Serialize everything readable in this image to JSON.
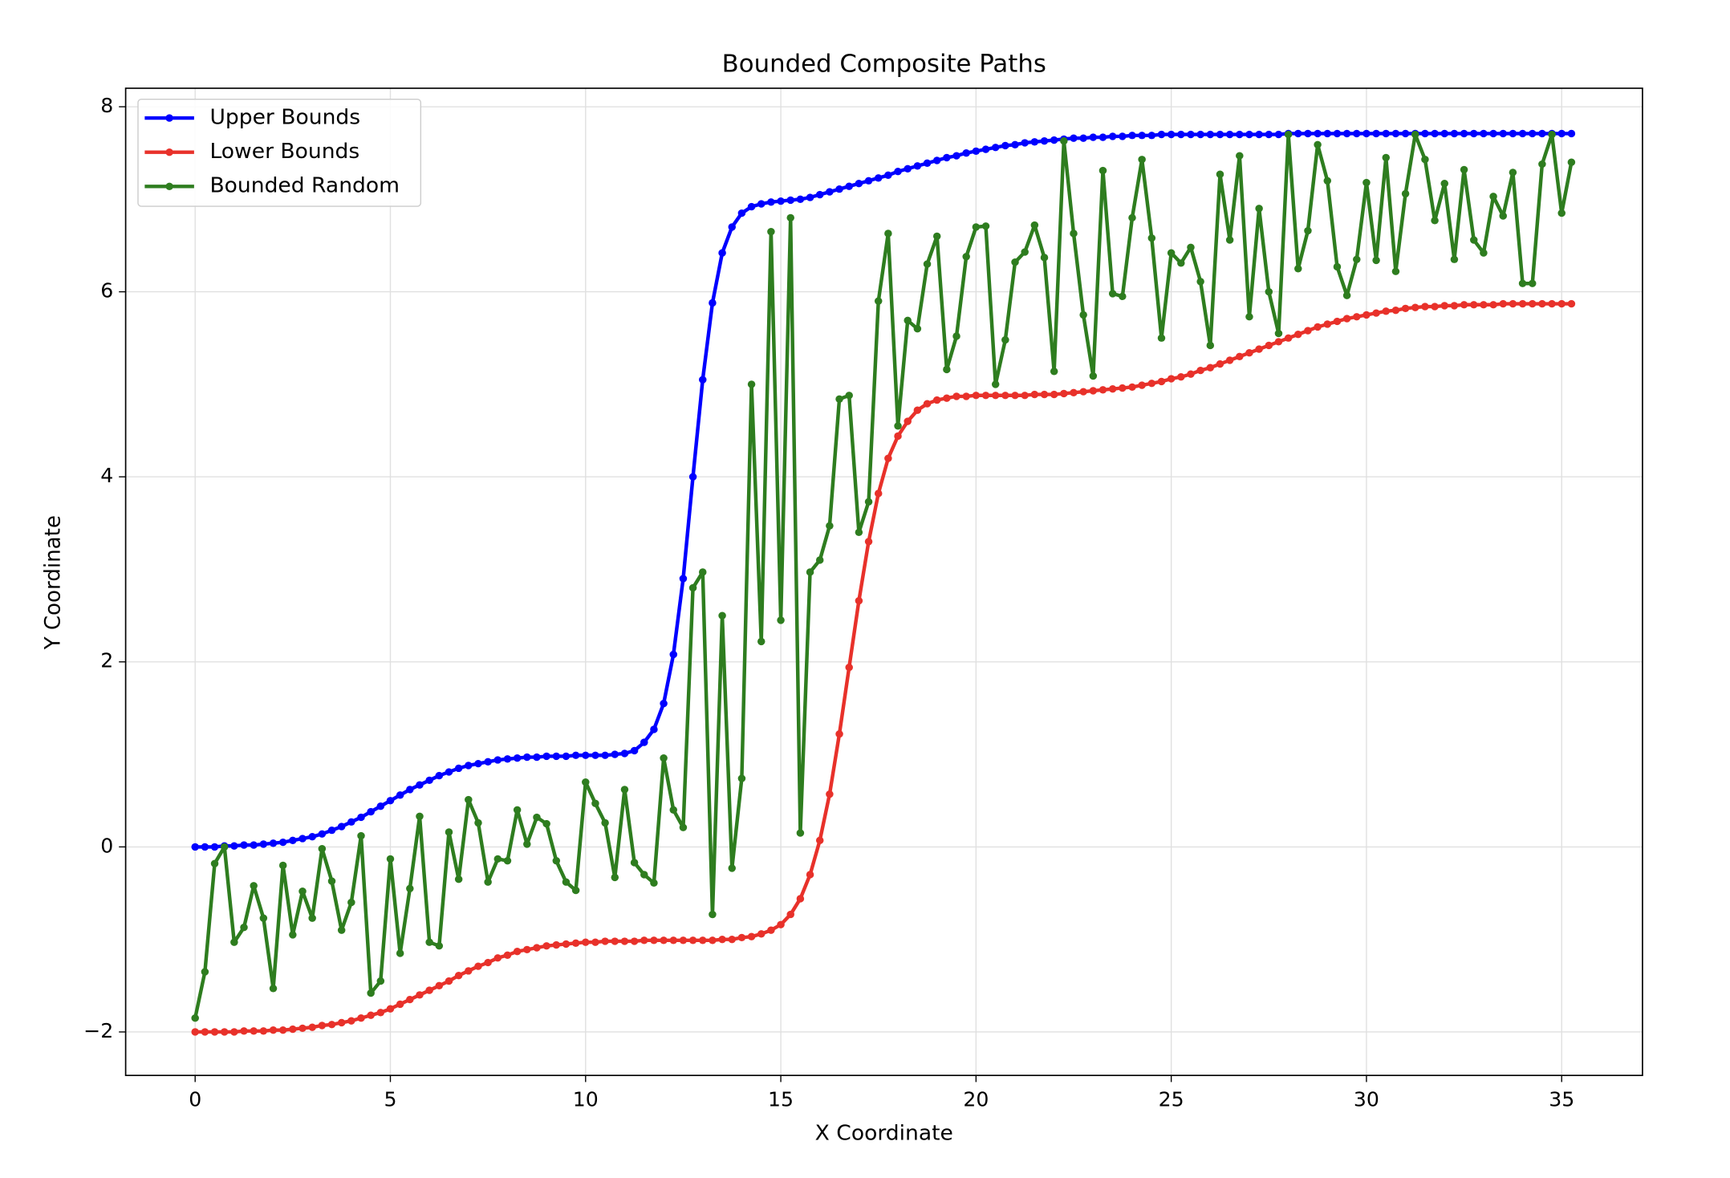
{
  "chart_data": {
    "type": "line",
    "title": "Bounded Composite Paths",
    "xlabel": "X Coordinate",
    "ylabel": "Y Coordinate",
    "x": [
      0,
      0.25,
      0.5,
      0.75,
      1,
      1.25,
      1.5,
      1.75,
      2,
      2.25,
      2.5,
      2.75,
      3,
      3.25,
      3.5,
      3.75,
      4,
      4.25,
      4.5,
      4.75,
      5,
      5.25,
      5.5,
      5.75,
      6,
      6.25,
      6.5,
      6.75,
      7,
      7.25,
      7.5,
      7.75,
      8,
      8.25,
      8.5,
      8.75,
      9,
      9.25,
      9.5,
      9.75,
      10,
      10.25,
      10.5,
      10.75,
      11,
      11.25,
      11.5,
      11.75,
      12,
      12.25,
      12.5,
      12.75,
      13,
      13.25,
      13.5,
      13.75,
      14,
      14.25,
      14.5,
      14.75,
      15,
      15.25,
      15.5,
      15.75,
      16,
      16.25,
      16.5,
      16.75,
      17,
      17.25,
      17.5,
      17.75,
      18,
      18.25,
      18.5,
      18.75,
      19,
      19.25,
      19.5,
      19.75,
      20,
      20.25,
      20.5,
      20.75,
      21,
      21.25,
      21.5,
      21.75,
      22,
      22.25,
      22.5,
      22.75,
      23,
      23.25,
      23.5,
      23.75,
      24,
      24.25,
      24.5,
      24.75,
      25,
      25.25,
      25.5,
      25.75,
      26,
      26.25,
      26.5,
      26.75,
      27,
      27.25,
      27.5,
      27.75,
      28,
      28.25,
      28.5,
      28.75,
      29,
      29.25,
      29.5,
      29.75,
      30,
      30.25,
      30.5,
      30.75,
      31,
      31.25,
      31.5,
      31.75,
      32,
      32.25,
      32.5,
      32.75,
      33,
      33.25,
      33.5,
      33.75,
      34,
      34.25,
      34.5,
      34.75,
      35,
      35.25
    ],
    "series": [
      {
        "name": "Upper Bounds",
        "color": "#0000ff",
        "values": [
          0,
          0,
          0,
          0.01,
          0.01,
          0.02,
          0.02,
          0.03,
          0.04,
          0.05,
          0.07,
          0.09,
          0.11,
          0.14,
          0.18,
          0.22,
          0.27,
          0.32,
          0.38,
          0.44,
          0.5,
          0.56,
          0.62,
          0.67,
          0.72,
          0.77,
          0.81,
          0.85,
          0.88,
          0.9,
          0.92,
          0.94,
          0.95,
          0.96,
          0.97,
          0.97,
          0.98,
          0.98,
          0.98,
          0.99,
          0.99,
          0.99,
          0.99,
          1.0,
          1.01,
          1.04,
          1.13,
          1.27,
          1.55,
          2.08,
          2.9,
          4.0,
          5.05,
          5.88,
          6.42,
          6.7,
          6.85,
          6.92,
          6.95,
          6.97,
          6.98,
          6.99,
          7.0,
          7.02,
          7.05,
          7.08,
          7.11,
          7.14,
          7.17,
          7.2,
          7.23,
          7.26,
          7.3,
          7.33,
          7.36,
          7.39,
          7.42,
          7.45,
          7.47,
          7.5,
          7.52,
          7.54,
          7.56,
          7.58,
          7.59,
          7.61,
          7.62,
          7.63,
          7.64,
          7.65,
          7.66,
          7.66,
          7.67,
          7.67,
          7.68,
          7.68,
          7.69,
          7.69,
          7.69,
          7.7,
          7.7,
          7.7,
          7.7,
          7.7,
          7.7,
          7.7,
          7.7,
          7.7,
          7.7,
          7.7,
          7.7,
          7.7,
          7.71,
          7.71,
          7.71,
          7.71,
          7.71,
          7.71,
          7.71,
          7.71,
          7.71,
          7.71,
          7.71,
          7.71,
          7.71,
          7.71,
          7.71,
          7.71,
          7.71,
          7.71,
          7.71,
          7.71,
          7.71,
          7.71,
          7.71,
          7.71,
          7.71,
          7.71,
          7.71,
          7.71,
          7.71,
          7.71
        ]
      },
      {
        "name": "Lower Bounds",
        "color": "#e8312a",
        "values": [
          -2,
          -2,
          -2,
          -2,
          -2,
          -1.99,
          -1.99,
          -1.99,
          -1.98,
          -1.98,
          -1.97,
          -1.96,
          -1.95,
          -1.93,
          -1.92,
          -1.9,
          -1.88,
          -1.85,
          -1.82,
          -1.79,
          -1.75,
          -1.7,
          -1.65,
          -1.6,
          -1.55,
          -1.5,
          -1.45,
          -1.39,
          -1.34,
          -1.29,
          -1.25,
          -1.2,
          -1.17,
          -1.13,
          -1.11,
          -1.09,
          -1.07,
          -1.06,
          -1.05,
          -1.04,
          -1.03,
          -1.03,
          -1.02,
          -1.02,
          -1.02,
          -1.02,
          -1.01,
          -1.01,
          -1.01,
          -1.01,
          -1.01,
          -1.01,
          -1.01,
          -1.01,
          -1.0,
          -1.0,
          -0.98,
          -0.97,
          -0.94,
          -0.9,
          -0.84,
          -0.73,
          -0.56,
          -0.3,
          0.07,
          0.57,
          1.22,
          1.94,
          2.66,
          3.3,
          3.82,
          4.2,
          4.44,
          4.6,
          4.72,
          4.79,
          4.83,
          4.85,
          4.87,
          4.87,
          4.88,
          4.88,
          4.88,
          4.88,
          4.88,
          4.88,
          4.89,
          4.89,
          4.89,
          4.9,
          4.91,
          4.92,
          4.93,
          4.94,
          4.95,
          4.96,
          4.97,
          4.99,
          5.01,
          5.03,
          5.06,
          5.08,
          5.11,
          5.15,
          5.18,
          5.22,
          5.26,
          5.3,
          5.34,
          5.38,
          5.42,
          5.46,
          5.5,
          5.54,
          5.58,
          5.62,
          5.65,
          5.68,
          5.71,
          5.73,
          5.75,
          5.77,
          5.79,
          5.8,
          5.82,
          5.83,
          5.84,
          5.84,
          5.85,
          5.85,
          5.86,
          5.86,
          5.86,
          5.86,
          5.87,
          5.87,
          5.87,
          5.87,
          5.87,
          5.87,
          5.87,
          5.87
        ]
      },
      {
        "name": "Bounded Random",
        "color": "#2e7d1f",
        "values": [
          -1.85,
          -1.35,
          -0.18,
          0.0,
          -1.03,
          -0.87,
          -0.42,
          -0.77,
          -1.53,
          -0.2,
          -0.95,
          -0.48,
          -0.77,
          -0.02,
          -0.37,
          -0.9,
          -0.6,
          0.12,
          -1.58,
          -1.45,
          -0.13,
          -1.15,
          -0.45,
          0.33,
          -1.03,
          -1.07,
          0.16,
          -0.35,
          0.51,
          0.26,
          -0.38,
          -0.13,
          -0.15,
          0.4,
          0.03,
          0.32,
          0.25,
          -0.15,
          -0.38,
          -0.47,
          0.7,
          0.47,
          0.26,
          -0.33,
          0.62,
          -0.17,
          -0.3,
          -0.39,
          0.96,
          0.4,
          0.21,
          2.8,
          2.97,
          -0.73,
          2.5,
          -0.23,
          0.74,
          5.0,
          2.22,
          6.65,
          2.45,
          6.8,
          0.15,
          2.97,
          3.1,
          3.47,
          4.84,
          4.88,
          3.4,
          3.73,
          5.9,
          6.63,
          4.55,
          5.69,
          5.6,
          6.3,
          6.6,
          5.16,
          5.52,
          6.38,
          6.7,
          6.71,
          5.0,
          5.48,
          6.32,
          6.43,
          6.72,
          6.37,
          5.14,
          7.63,
          6.63,
          5.75,
          5.09,
          7.31,
          5.98,
          5.95,
          6.8,
          7.43,
          6.58,
          5.5,
          6.42,
          6.31,
          6.48,
          6.11,
          5.42,
          7.27,
          6.56,
          7.47,
          5.73,
          6.9,
          6.0,
          5.55,
          7.7,
          6.25,
          6.66,
          7.59,
          7.2,
          6.27,
          5.96,
          6.35,
          7.18,
          6.34,
          7.45,
          6.22,
          7.06,
          7.7,
          7.43,
          6.77,
          7.17,
          6.35,
          7.32,
          6.56,
          6.42,
          7.03,
          6.82,
          7.29,
          6.09,
          6.09,
          7.38,
          7.7,
          6.85,
          7.4
        ]
      }
    ],
    "xlim": [
      -1.78,
      37.07
    ],
    "ylim": [
      -2.47,
      8.2
    ],
    "xticks": [
      0,
      5,
      10,
      15,
      20,
      25,
      30,
      35
    ],
    "yticks": [
      {
        "value": -2,
        "label": "−2"
      },
      0,
      2,
      4,
      6,
      8
    ],
    "grid": true,
    "legend": "upper left"
  }
}
